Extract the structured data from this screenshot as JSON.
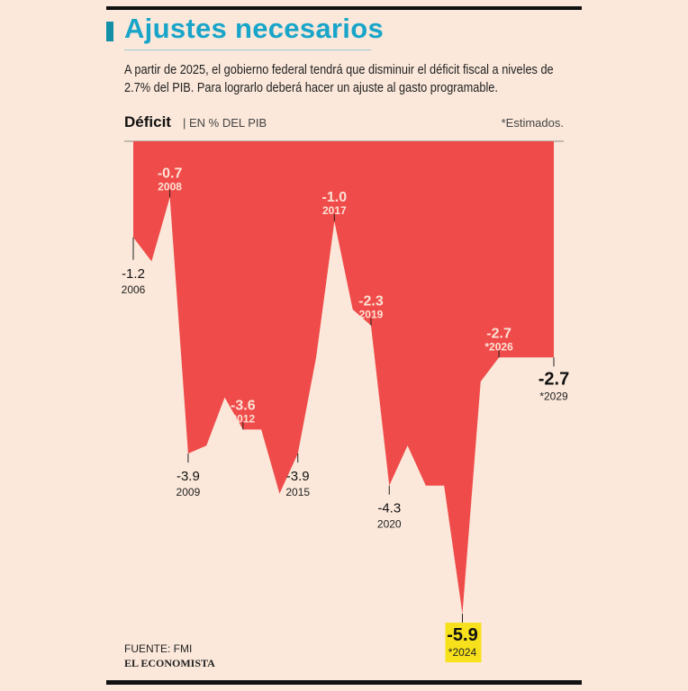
{
  "header": {
    "title": "Ajustes necesarios",
    "subtitle": "A partir de 2025, el gobierno federal tendrá que disminuir el déficit fiscal a niveles de 2.7% del PIB. Para lograrlo deberá hacer un ajuste al gasto programable.",
    "chart_label": "Déficit",
    "unit": "| EN % DEL PIB",
    "note": "*Estimados."
  },
  "footer": {
    "source": "FUENTE: FMI",
    "logo": "EL ECONOMISTA"
  },
  "colors": {
    "area": "#ef4b4a",
    "title": "#18a5c9",
    "highlight": "#f7e01c",
    "background": "#fbe8da"
  },
  "chart_data": {
    "type": "area",
    "title": "Déficit",
    "ylabel": "EN % DEL PIB",
    "ylim": [
      -6.0,
      0
    ],
    "grid": false,
    "x": [
      2006,
      2007,
      2008,
      2009,
      2010,
      2011,
      2012,
      2013,
      2014,
      2015,
      2016,
      2017,
      2018,
      2019,
      2020,
      2021,
      2022,
      2023,
      2024,
      2025,
      2026,
      2027,
      2028,
      2029
    ],
    "values": [
      -1.2,
      -1.5,
      -0.7,
      -3.9,
      -3.8,
      -3.2,
      -3.6,
      -3.6,
      -4.4,
      -3.9,
      -2.7,
      -1.0,
      -2.1,
      -2.3,
      -4.3,
      -3.8,
      -4.3,
      -4.3,
      -5.9,
      -3.0,
      -2.7,
      -2.7,
      -2.7,
      -2.7
    ],
    "annotations": [
      {
        "year": 2006,
        "value": "-1.2",
        "label": "2006",
        "side": "below",
        "style": "normal"
      },
      {
        "year": 2008,
        "value": "-0.7",
        "label": "2008",
        "side": "above",
        "style": "inside"
      },
      {
        "year": 2009,
        "value": "-3.9",
        "label": "2009",
        "side": "below",
        "style": "normal"
      },
      {
        "year": 2012,
        "value": "-3.6",
        "label": "2012",
        "side": "above",
        "style": "inside"
      },
      {
        "year": 2015,
        "value": "-3.9",
        "label": "2015",
        "side": "below",
        "style": "normal"
      },
      {
        "year": 2017,
        "value": "-1.0",
        "label": "2017",
        "side": "above",
        "style": "inside"
      },
      {
        "year": 2019,
        "value": "-2.3",
        "label": "2019",
        "side": "above",
        "style": "inside"
      },
      {
        "year": 2020,
        "value": "-4.3",
        "label": "2020",
        "side": "below",
        "style": "normal"
      },
      {
        "year": 2024,
        "value": "-5.9",
        "label": "*2024",
        "side": "below",
        "style": "highlight"
      },
      {
        "year": 2026,
        "value": "-2.7",
        "label": "*2026",
        "side": "above",
        "style": "inside"
      },
      {
        "year": 2029,
        "value": "-2.7",
        "label": "*2029",
        "side": "below",
        "style": "bold"
      }
    ]
  }
}
